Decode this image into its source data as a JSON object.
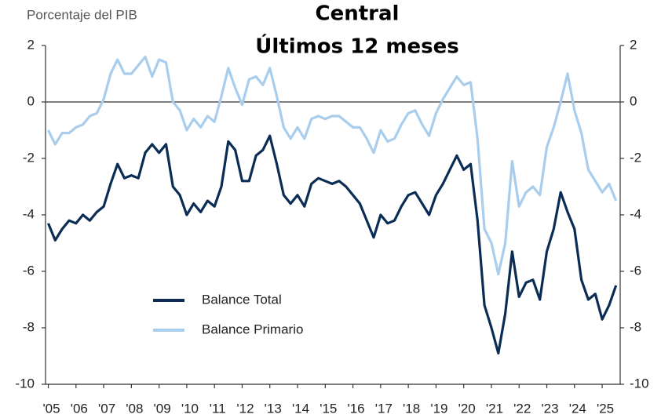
{
  "chart_data": {
    "type": "line",
    "title": "Central",
    "subtitle": "Últimos 12 meses",
    "y_label": "Porcentaje del PIB",
    "x": [
      2005,
      2005.25,
      2005.5,
      2005.75,
      2006,
      2006.25,
      2006.5,
      2006.75,
      2007,
      2007.25,
      2007.5,
      2007.75,
      2008,
      2008.25,
      2008.5,
      2008.75,
      2009,
      2009.25,
      2009.5,
      2009.75,
      2010,
      2010.25,
      2010.5,
      2010.75,
      2011,
      2011.25,
      2011.5,
      2011.75,
      2012,
      2012.25,
      2012.5,
      2012.75,
      2013,
      2013.25,
      2013.5,
      2013.75,
      2014,
      2014.25,
      2014.5,
      2014.75,
      2015,
      2015.25,
      2015.5,
      2015.75,
      2016,
      2016.25,
      2016.5,
      2016.75,
      2017,
      2017.25,
      2017.5,
      2017.75,
      2018,
      2018.25,
      2018.5,
      2018.75,
      2019,
      2019.25,
      2019.5,
      2019.75,
      2020,
      2020.25,
      2020.5,
      2020.75,
      2021,
      2021.25,
      2021.5,
      2021.75,
      2022,
      2022.25,
      2022.5,
      2022.75,
      2023,
      2023.25,
      2023.5,
      2023.75,
      2024,
      2024.25,
      2024.5,
      2024.75,
      2025,
      2025.25,
      2025.5
    ],
    "series": [
      {
        "name": "Balance Total",
        "color": "#0b2d55",
        "values": [
          -4.3,
          -4.9,
          -4.5,
          -4.2,
          -4.3,
          -4.0,
          -4.2,
          -3.9,
          -3.7,
          -2.9,
          -2.2,
          -2.7,
          -2.6,
          -2.7,
          -1.8,
          -1.5,
          -1.8,
          -1.5,
          -3.0,
          -3.3,
          -4.0,
          -3.6,
          -3.9,
          -3.5,
          -3.7,
          -3.0,
          -1.4,
          -1.7,
          -2.8,
          -2.8,
          -1.9,
          -1.7,
          -1.2,
          -2.2,
          -3.3,
          -3.6,
          -3.3,
          -3.7,
          -2.9,
          -2.7,
          -2.8,
          -2.9,
          -2.8,
          -3.0,
          -3.3,
          -3.6,
          -4.2,
          -4.8,
          -4.0,
          -4.3,
          -4.2,
          -3.7,
          -3.3,
          -3.2,
          -3.6,
          -4.0,
          -3.3,
          -2.9,
          -2.4,
          -1.9,
          -2.4,
          -2.2,
          -4.2,
          -7.2,
          -8.0,
          -8.9,
          -7.5,
          -5.3,
          -6.9,
          -6.4,
          -6.3,
          -7.0,
          -5.3,
          -4.5,
          -3.2,
          -3.9,
          -4.5,
          -6.3,
          -7.0,
          -6.8,
          -7.7,
          -7.2,
          -6.5
        ]
      },
      {
        "name": "Balance Primario",
        "color": "#a9cdec",
        "values": [
          -1.0,
          -1.5,
          -1.1,
          -1.1,
          -0.9,
          -0.8,
          -0.5,
          -0.4,
          0.1,
          1.0,
          1.5,
          1.0,
          1.0,
          1.3,
          1.6,
          0.9,
          1.5,
          1.4,
          0.0,
          -0.3,
          -1.0,
          -0.6,
          -0.9,
          -0.5,
          -0.7,
          0.2,
          1.2,
          0.5,
          -0.1,
          0.8,
          0.9,
          0.6,
          1.2,
          0.2,
          -0.9,
          -1.3,
          -0.9,
          -1.3,
          -0.6,
          -0.5,
          -0.6,
          -0.5,
          -0.5,
          -0.7,
          -0.9,
          -0.9,
          -1.3,
          -1.8,
          -1.0,
          -1.4,
          -1.3,
          -0.8,
          -0.4,
          -0.3,
          -0.8,
          -1.2,
          -0.4,
          0.1,
          0.5,
          0.9,
          0.6,
          0.7,
          -1.3,
          -4.5,
          -5.0,
          -6.1,
          -5.0,
          -2.1,
          -3.7,
          -3.2,
          -3.0,
          -3.3,
          -1.6,
          -0.9,
          0.0,
          1.0,
          -0.3,
          -1.1,
          -2.4,
          -2.8,
          -3.2,
          -2.9,
          -3.5
        ]
      }
    ],
    "xlim": [
      2004.9,
      2025.65
    ],
    "xticks": [
      {
        "value": 2005,
        "label": "'05"
      },
      {
        "value": 2006,
        "label": "'06"
      },
      {
        "value": 2007,
        "label": "'07"
      },
      {
        "value": 2008,
        "label": "'08"
      },
      {
        "value": 2009,
        "label": "'09"
      },
      {
        "value": 2010,
        "label": "'10"
      },
      {
        "value": 2011,
        "label": "'11"
      },
      {
        "value": 2012,
        "label": "'12"
      },
      {
        "value": 2013,
        "label": "'13"
      },
      {
        "value": 2014,
        "label": "'14"
      },
      {
        "value": 2015,
        "label": "'15"
      },
      {
        "value": 2016,
        "label": "'16"
      },
      {
        "value": 2017,
        "label": "'17"
      },
      {
        "value": 2018,
        "label": "'18"
      },
      {
        "value": 2019,
        "label": "'19"
      },
      {
        "value": 2020,
        "label": "'20"
      },
      {
        "value": 2021,
        "label": "'21"
      },
      {
        "value": 2022,
        "label": "'22"
      },
      {
        "value": 2023,
        "label": "'23"
      },
      {
        "value": 2024,
        "label": "'24"
      },
      {
        "value": 2025,
        "label": "'25"
      }
    ],
    "ylim": [
      -10,
      2
    ],
    "yticks": [
      -10,
      -8,
      -6,
      -4,
      -2,
      0,
      2
    ],
    "y2lim": [
      -10,
      2
    ],
    "y2ticks": [
      -10,
      -8,
      -6,
      -4,
      -2,
      0,
      2
    ],
    "legend": "lower left"
  }
}
